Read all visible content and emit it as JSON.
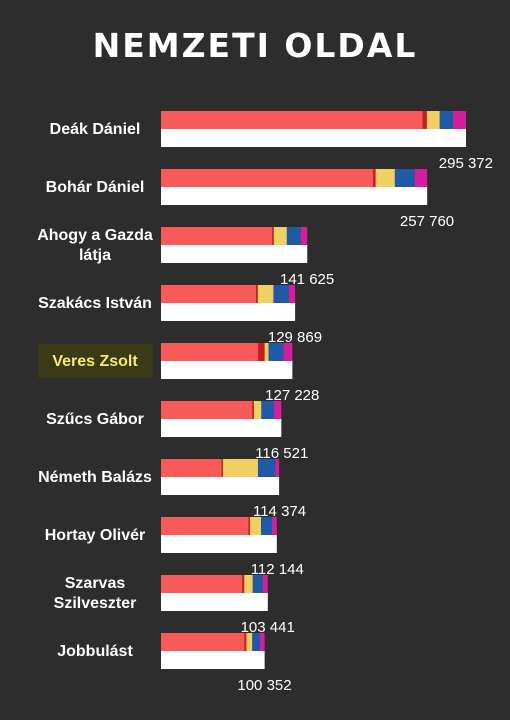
{
  "title": "NEMZETI OLDAL",
  "colors": {
    "background": "#2d2d2d",
    "main": "#f85a5a",
    "segments": [
      "#c81e1e",
      "#f0d060",
      "#1f5aa8",
      "#d61e9a"
    ],
    "base": "#ffffff",
    "highlight_bg": "#3a3a18",
    "highlight_text": "#f5ec6a"
  },
  "chart_data": {
    "type": "bar",
    "title": "NEMZETI OLDAL",
    "orientation": "horizontal",
    "stacked": true,
    "categories": [
      "Deák Dániel",
      "Bohár Dániel",
      "Ahogy a Gazda látja",
      "Szakács István",
      "Veres Zsolt",
      "Szűcs Gábor",
      "Németh Balázs",
      "Hortay Olivér",
      "Szarvas Szilveszter",
      "Jobbulást"
    ],
    "highlighted": "Veres Zsolt",
    "totals": [
      295372,
      257760,
      141625,
      129869,
      127228,
      116521,
      114374,
      112144,
      103441,
      100352
    ],
    "total_labels": [
      "295 372",
      "257 760",
      "141 625",
      "129 869",
      "127 228",
      "116 521",
      "114 374",
      "112 144",
      "103 441",
      "100 352"
    ],
    "series": [
      {
        "color": "#f85a5a",
        "values": [
          253500,
          205500,
          107800,
          92000,
          94200,
          88500,
          58700,
          84800,
          78800,
          80800
        ]
      },
      {
        "color": "#c81e1e",
        "values": [
          4000,
          2300,
          1400,
          1700,
          6100,
          1500,
          1200,
          1400,
          1800,
          1900
        ]
      },
      {
        "color": "#f0d060",
        "values": [
          12500,
          18700,
          12700,
          15200,
          3800,
          7200,
          34000,
          10700,
          8300,
          5700
        ]
      },
      {
        "color": "#1f5aa8",
        "values": [
          12700,
          19200,
          13400,
          14800,
          14500,
          12200,
          17000,
          10600,
          9600,
          7400
        ]
      },
      {
        "color": "#d61e9a",
        "values": [
          12672,
          12060,
          6325,
          6169,
          8628,
          7121,
          3474,
          4644,
          4941,
          4552
        ]
      }
    ],
    "xlim": [
      0,
      295372
    ],
    "grid": false,
    "legend": "none"
  }
}
